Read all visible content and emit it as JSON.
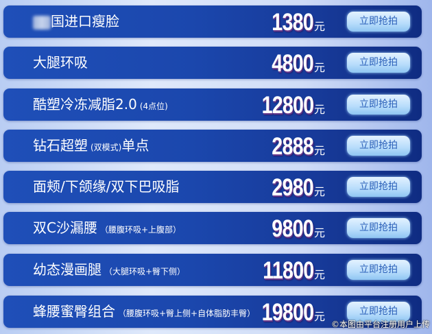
{
  "button_label": "立即抢拍",
  "currency": "元",
  "items": [
    {
      "name": "国进口瘦脸",
      "note": "",
      "price": "1380",
      "blurred_prefix": true
    },
    {
      "name": "大腿环吸",
      "note": "",
      "price": "4800"
    },
    {
      "name": "酷塑冷冻减脂2.0",
      "note": "(4点位)",
      "price": "12800"
    },
    {
      "name": "钻石超塑",
      "note": "(双模式)",
      "suffix": "单点",
      "price": "2888"
    },
    {
      "name": "面颊/下颌缘/双下巴吸脂",
      "note": "",
      "price": "2980"
    },
    {
      "name": "双C沙漏腰",
      "note": "（腰腹环吸+上腹部）",
      "price": "9800"
    },
    {
      "name": "幼态漫画腿",
      "note": "（大腿环吸+臀下侧）",
      "price": "11800"
    },
    {
      "name": "蜂腰蜜臀组合",
      "note": "（腰腹环吸+臀上侧+自体脂肪丰臀）",
      "price": "19800"
    }
  ],
  "watermark": "©本图由平台注册用户上传",
  "colors": {
    "row": "#1b47ad",
    "button": "#b7dcfb",
    "button_text": "#2a5fb8"
  }
}
